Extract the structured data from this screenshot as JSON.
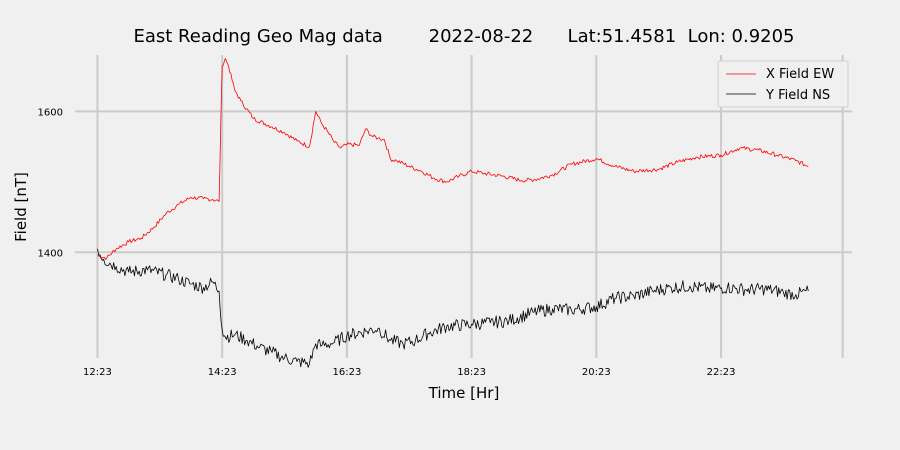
{
  "chart_data": {
    "type": "line",
    "title": "East Reading Geo Mag data        2022-08-22      Lat:51.4581  Lon: 0.9205",
    "xlabel": "Time  [Hr]",
    "ylabel": "Field  [nT]",
    "x_ticks": [
      "12:23",
      "14:23",
      "16:23",
      "18:23",
      "20:23",
      "22:23"
    ],
    "x_tick_hours": [
      0,
      2,
      4,
      6,
      8,
      10
    ],
    "xlim_hours": [
      -0.2,
      12.1
    ],
    "y_ticks": [
      1400,
      1600
    ],
    "ylim": [
      1250,
      1680
    ],
    "grid": true,
    "legend_position": "top-right",
    "series": [
      {
        "name": "X Field EW",
        "color": "#ff0000",
        "x_hours": [
          0,
          0.15,
          0.3,
          0.5,
          0.7,
          0.9,
          1.1,
          1.3,
          1.5,
          1.7,
          1.85,
          1.95,
          2.0,
          2.05,
          2.1,
          2.2,
          2.3,
          2.5,
          2.8,
          3.0,
          3.2,
          3.4,
          3.5,
          3.6,
          3.7,
          3.8,
          3.9,
          4.0,
          4.2,
          4.3,
          4.4,
          4.5,
          4.6,
          4.7,
          4.8,
          5.0,
          5.2,
          5.4,
          5.6,
          5.8,
          6.0,
          6.2,
          6.5,
          6.8,
          7.0,
          7.3,
          7.6,
          8.0,
          8.3,
          8.6,
          9.0,
          9.3,
          9.6,
          10.0,
          10.3,
          10.6,
          10.9,
          11.2,
          11.4
        ],
        "values": [
          1395,
          1392,
          1405,
          1415,
          1420,
          1435,
          1455,
          1468,
          1478,
          1476,
          1475,
          1472,
          1665,
          1675,
          1665,
          1630,
          1615,
          1590,
          1578,
          1570,
          1558,
          1550,
          1600,
          1582,
          1570,
          1556,
          1548,
          1553,
          1552,
          1575,
          1565,
          1562,
          1560,
          1532,
          1530,
          1522,
          1515,
          1505,
          1500,
          1508,
          1515,
          1512,
          1508,
          1502,
          1503,
          1510,
          1525,
          1533,
          1522,
          1515,
          1518,
          1528,
          1535,
          1538,
          1548,
          1545,
          1538,
          1530,
          1522
        ]
      },
      {
        "name": "Y Field NS",
        "color": "#000000",
        "x_hours": [
          0,
          0.1,
          0.3,
          0.5,
          0.8,
          1.1,
          1.3,
          1.5,
          1.7,
          1.85,
          1.95,
          2.0,
          2.05,
          2.2,
          2.4,
          2.6,
          2.8,
          3.0,
          3.2,
          3.4,
          3.5,
          3.6,
          3.8,
          4.0,
          4.3,
          4.5,
          4.7,
          4.9,
          5.1,
          5.3,
          5.6,
          6.0,
          6.3,
          6.6,
          7.0,
          7.3,
          7.6,
          8.0,
          8.3,
          8.6,
          8.9,
          9.2,
          9.5,
          9.8,
          10.1,
          10.4,
          10.7,
          11.0,
          11.2,
          11.4
        ],
        "values": [
          1405,
          1390,
          1380,
          1372,
          1375,
          1368,
          1362,
          1355,
          1350,
          1358,
          1345,
          1290,
          1280,
          1283,
          1275,
          1265,
          1258,
          1250,
          1245,
          1242,
          1270,
          1268,
          1272,
          1282,
          1288,
          1292,
          1275,
          1270,
          1275,
          1285,
          1295,
          1298,
          1300,
          1303,
          1315,
          1320,
          1318,
          1323,
          1335,
          1338,
          1345,
          1350,
          1352,
          1348,
          1350,
          1347,
          1348,
          1343,
          1340,
          1345
        ]
      }
    ]
  }
}
